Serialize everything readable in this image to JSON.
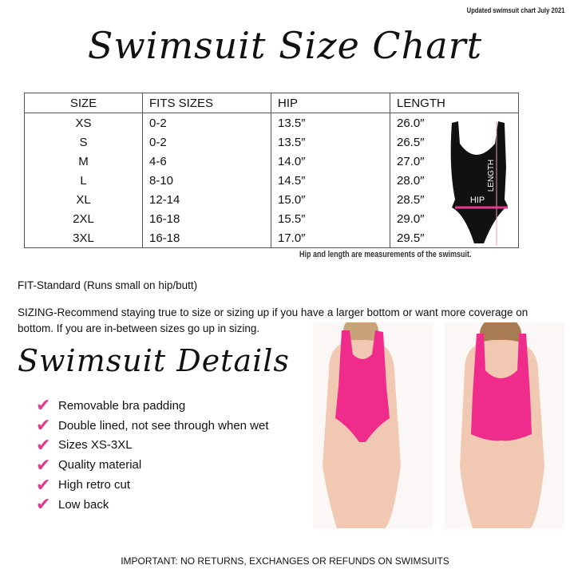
{
  "note": "Updated swimsuit chart July 2021",
  "title": "Swimsuit Size Chart",
  "table": {
    "headers": [
      "SIZE",
      "FITS SIZES",
      "HIP",
      "LENGTH"
    ],
    "rows": [
      [
        "XS",
        "0-2",
        "13.5″",
        "26.0″"
      ],
      [
        "S",
        "0-2",
        "13.5″",
        "26.5″"
      ],
      [
        "M",
        "4-6",
        "14.0″",
        "27.0″"
      ],
      [
        "L",
        "8-10",
        "14.5″",
        "28.0″"
      ],
      [
        "XL",
        "12-14",
        "15.0″",
        "28.5″"
      ],
      [
        "2XL",
        "16-18",
        "15.5″",
        "29.0″"
      ],
      [
        "3XL",
        "16-18",
        "17.0″",
        "29.5″"
      ]
    ]
  },
  "diagram": {
    "length_label": "LENGTH",
    "hip_label": "HIP",
    "suit_color": "#111111",
    "hip_color": "#e23a8e",
    "length_color": "#f09ab8"
  },
  "caption": "Hip and length are measurements of the swimsuit.",
  "fit": "FIT-Standard (Runs small on hip/butt)",
  "sizing": "SIZING-Recommend staying true to size or sizing up if you have a larger bottom or want more coverage on bottom. If you are in-between sizes go up in sizing.",
  "details_title": "Swimsuit Details",
  "details": [
    "Removable bra padding",
    "Double lined, not see through when wet",
    "Sizes XS-3XL",
    "Quality material",
    "High retro cut",
    "Low back"
  ],
  "check_icon": "pink-checkmark-icon",
  "accent": "#e23a8e",
  "important": "IMPORTANT: NO RETURNS, EXCHANGES OR REFUNDS ON SWIMSUITS"
}
